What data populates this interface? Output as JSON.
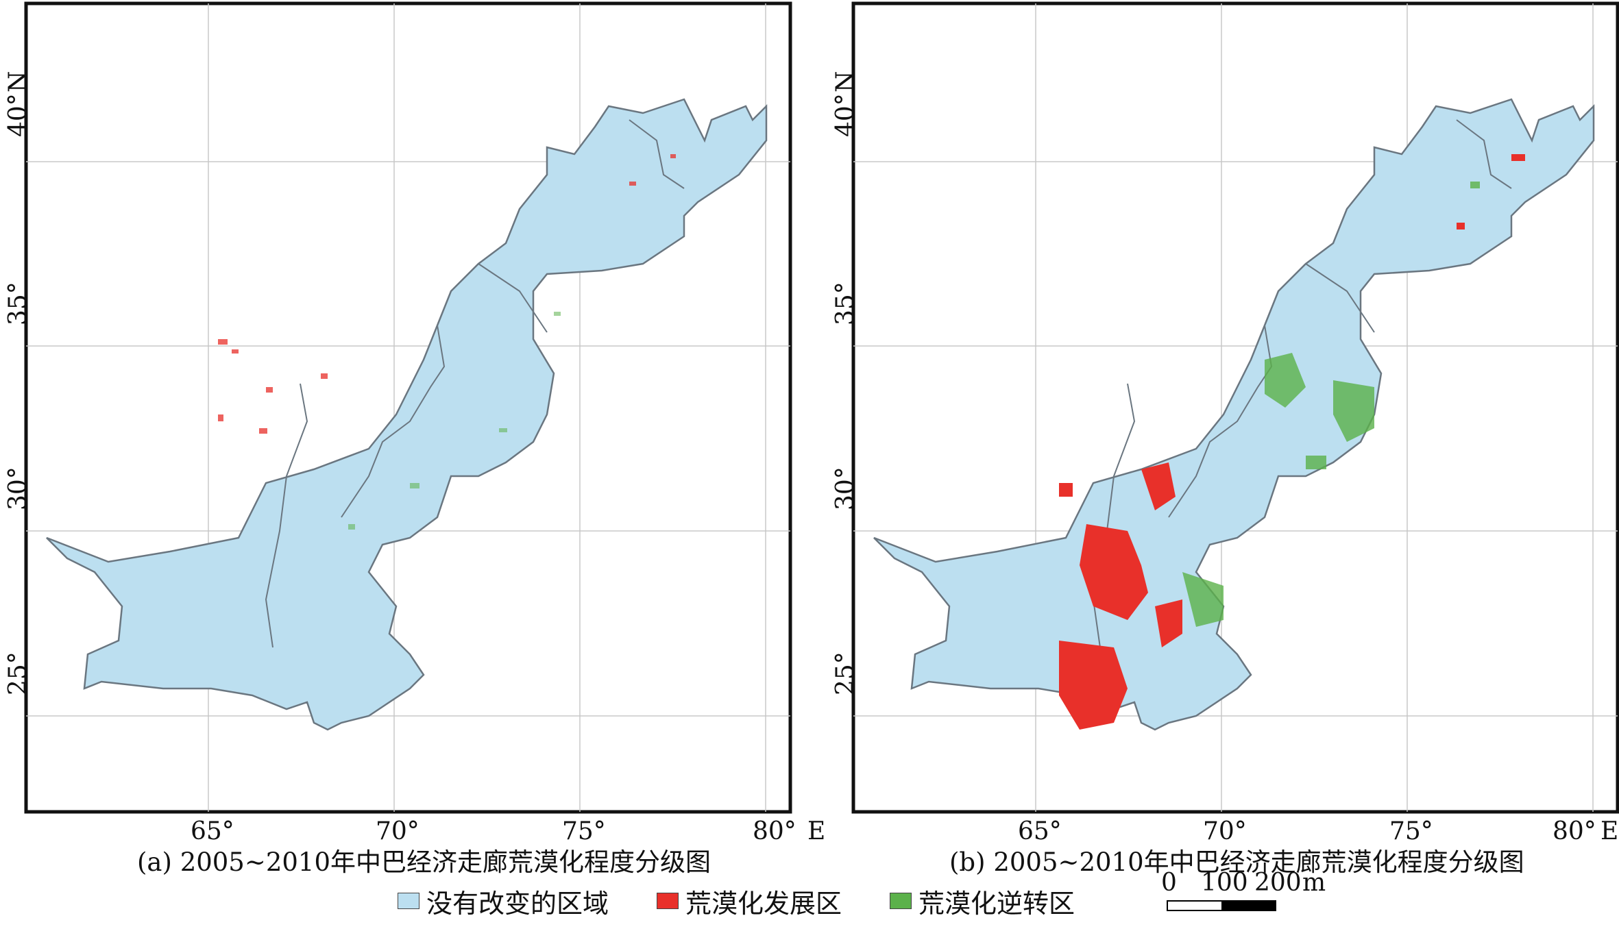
{
  "maps": [
    {
      "caption": "(a) 2005~2010年中巴经济走廊荒漠化程度分级图",
      "lat_labels": [
        "40°",
        "35°",
        "30°",
        "25°"
      ],
      "lat_axis_suffix": "N",
      "lon_labels": [
        "65°",
        "70°",
        "75°",
        "80°"
      ],
      "lon_axis_suffix": "E"
    },
    {
      "caption": "(b) 2005~2010年中巴经济走廊荒漠化程度分级图",
      "lat_labels": [
        "40°",
        "35°",
        "30°",
        "25°"
      ],
      "lat_axis_suffix": "N",
      "lon_labels": [
        "65°",
        "70°",
        "75°",
        "80°"
      ],
      "lon_axis_suffix": "E"
    }
  ],
  "legend": [
    {
      "label": "没有改变的区域",
      "color": "#bcdff0"
    },
    {
      "label": "荒漠化发展区",
      "color": "#e8302a"
    },
    {
      "label": "荒漠化逆转区",
      "color": "#5bb14a"
    }
  ],
  "scale": {
    "ticks": [
      "0",
      "100",
      "200"
    ],
    "unit": "m"
  }
}
